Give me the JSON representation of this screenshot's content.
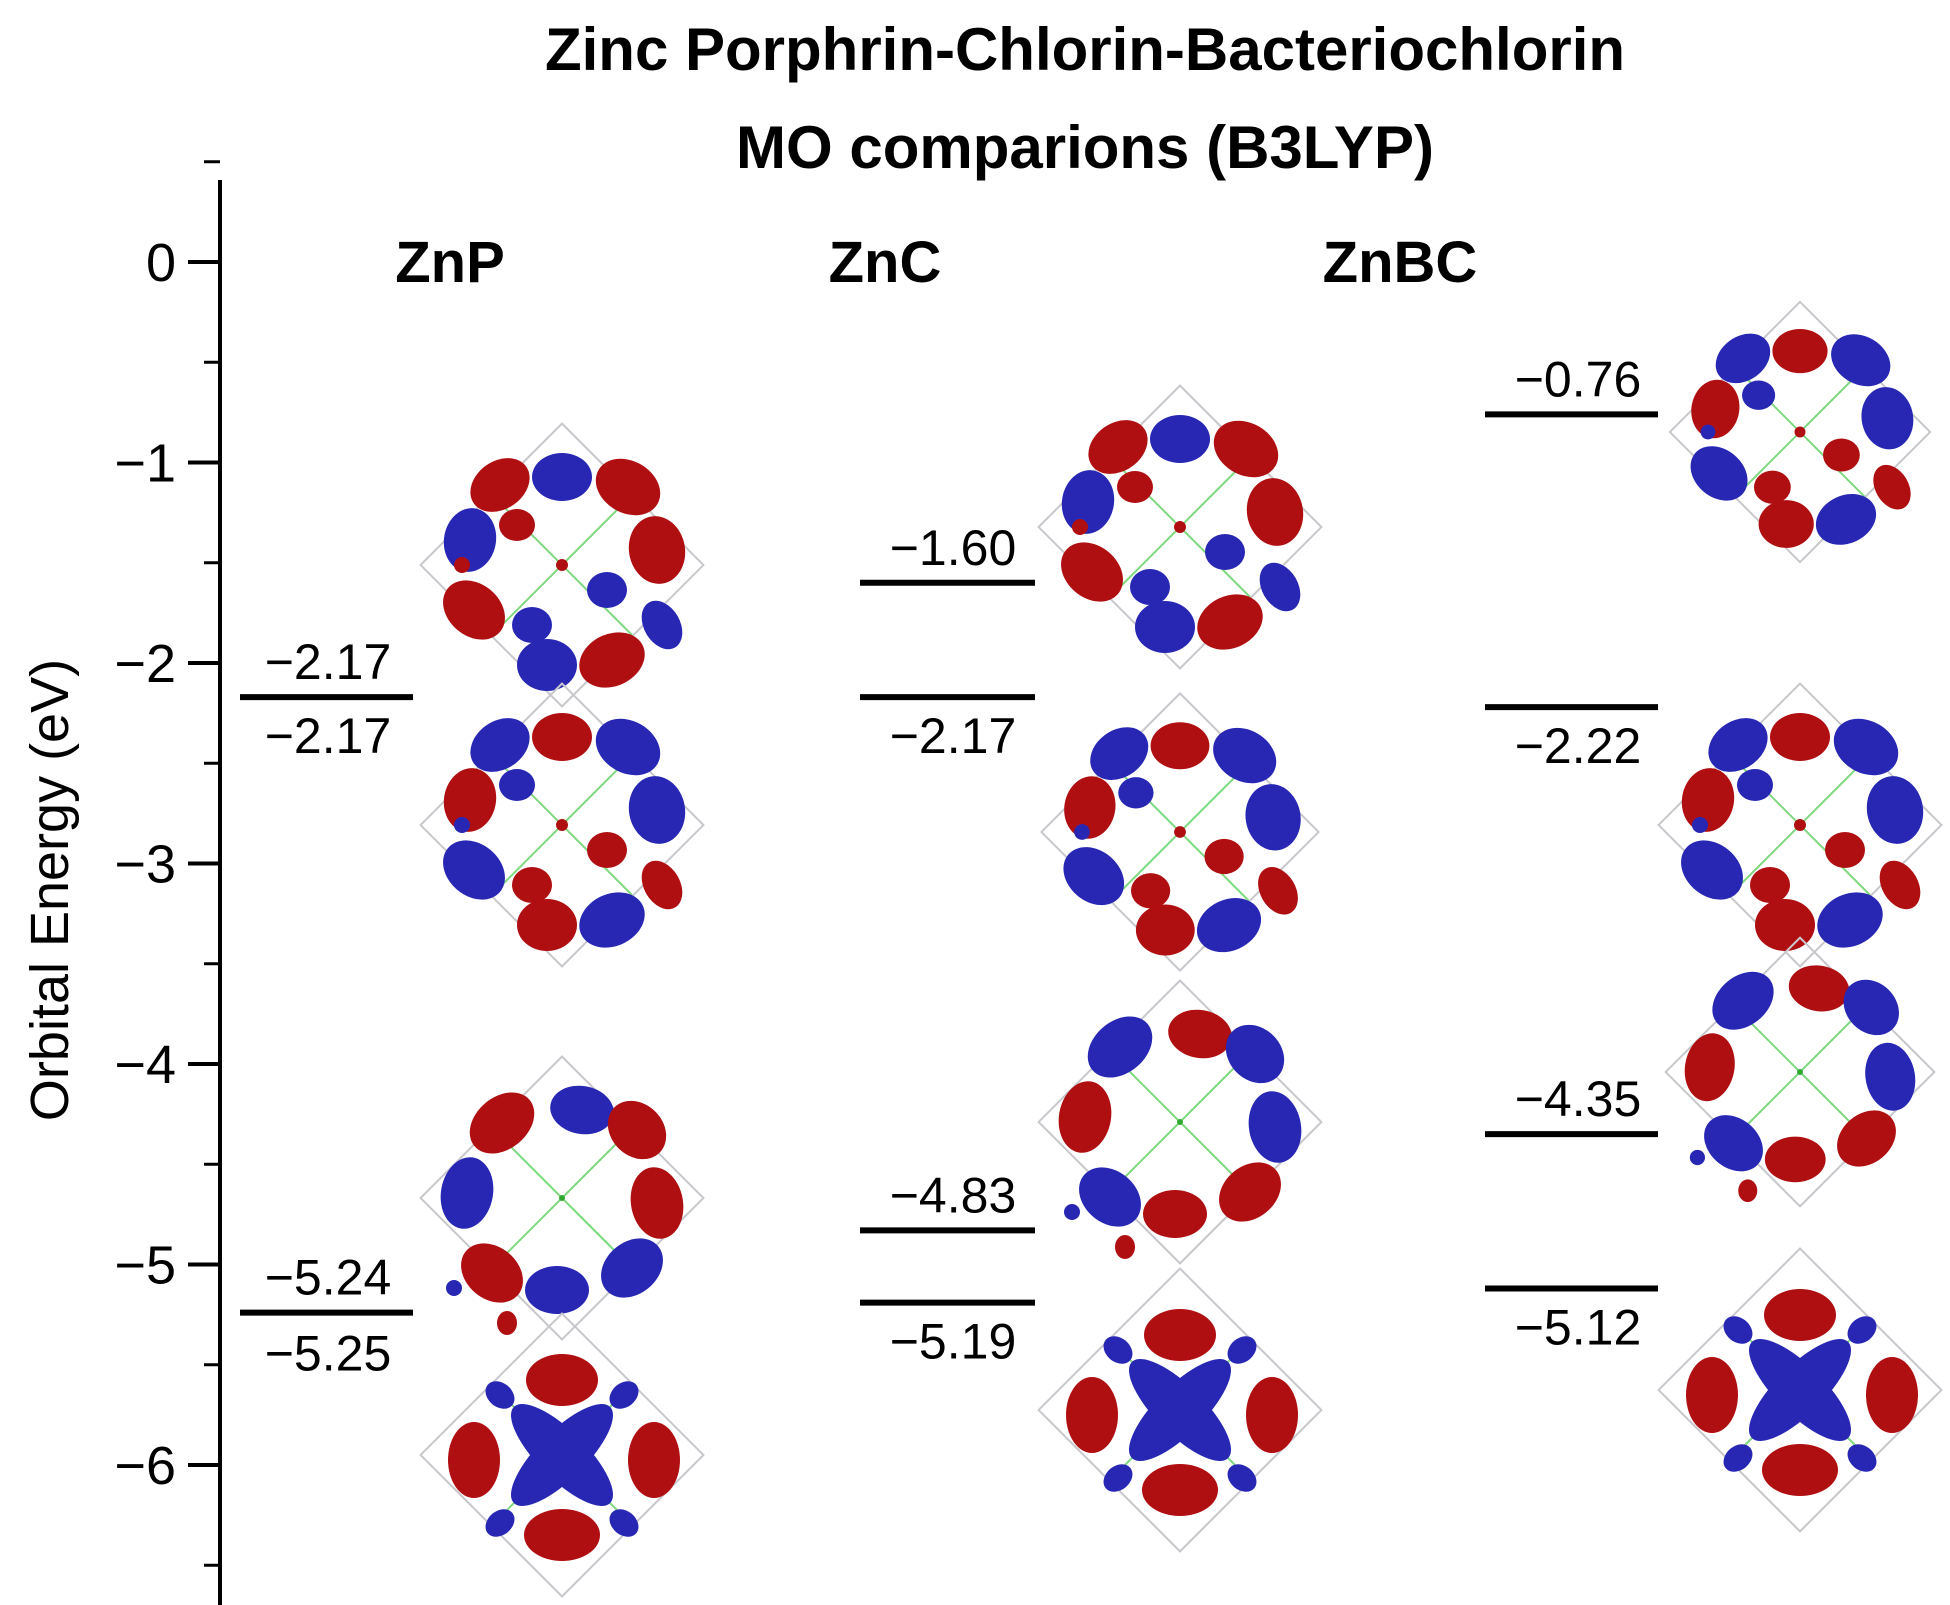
{
  "chart_data": {
    "type": "energy-level-diagram",
    "title_lines": [
      "Zinc Porphrin-Chlorin-Bacteriochlorin",
      "MO comparions (B3LYP)"
    ],
    "ylabel": "Orbital Energy (eV)",
    "ylim": [
      -6.6,
      0.4
    ],
    "yticks": [
      0,
      -1,
      -2,
      -3,
      -4,
      -5,
      -6
    ],
    "ytick_labels": [
      "0",
      "−1",
      "−2",
      "−3",
      "−4",
      "−5",
      "−6"
    ],
    "series": [
      {
        "name": "ZnP",
        "levels": [
          {
            "value": -2.17,
            "label": "−2.17"
          },
          {
            "value": -2.17,
            "label": "−2.17"
          },
          {
            "value": -5.24,
            "label": "−5.24"
          },
          {
            "value": -5.25,
            "label": "−5.25"
          }
        ]
      },
      {
        "name": "ZnC",
        "levels": [
          {
            "value": -1.6,
            "label": "−1.60"
          },
          {
            "value": -2.17,
            "label": "−2.17"
          },
          {
            "value": -4.83,
            "label": "−4.83"
          },
          {
            "value": -5.19,
            "label": "−5.19"
          }
        ]
      },
      {
        "name": "ZnBC",
        "levels": [
          {
            "value": -0.76,
            "label": "−0.76"
          },
          {
            "value": -2.22,
            "label": "−2.22"
          },
          {
            "value": -4.35,
            "label": "−4.35"
          },
          {
            "value": -5.12,
            "label": "−5.12"
          }
        ]
      }
    ],
    "orbital_colors": {
      "positive": "#b00f12",
      "negative": "#2727b4"
    }
  }
}
